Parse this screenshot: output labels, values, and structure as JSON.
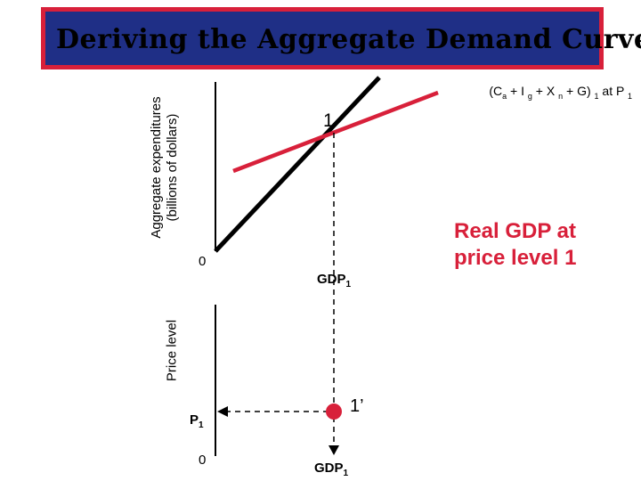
{
  "title": "Deriving the Aggregate Demand Curve",
  "top_graph": {
    "y_axis_label_line1": "Aggregate expenditures",
    "y_axis_label_line2": "(billions of dollars)",
    "origin_label": "0",
    "point_label": "1",
    "x_tick_label": "GDP",
    "x_tick_sub": "1",
    "curve_label": {
      "main": "(C",
      "parts": [
        {
          "text": " + I ",
          "sub": "a"
        },
        {
          "text": " + X ",
          "sub": "g"
        },
        {
          "text": " + G) ",
          "sub": "n"
        },
        {
          "text": " at P ",
          "sub": "1"
        },
        {
          "text": "",
          "sub": "1"
        }
      ]
    }
  },
  "note": "Real GDP at price level 1",
  "bottom_graph": {
    "y_axis_label": "Price level",
    "origin_label": "0",
    "price_label": "P",
    "price_sub": "1",
    "point_label": "1’",
    "x_tick_label": "GDP",
    "x_tick_sub": "1"
  },
  "colors": {
    "banner_bg": "#1f2f86",
    "banner_border": "#d8203a",
    "expenditure_line": "#d8203a",
    "point": "#d8203a"
  }
}
